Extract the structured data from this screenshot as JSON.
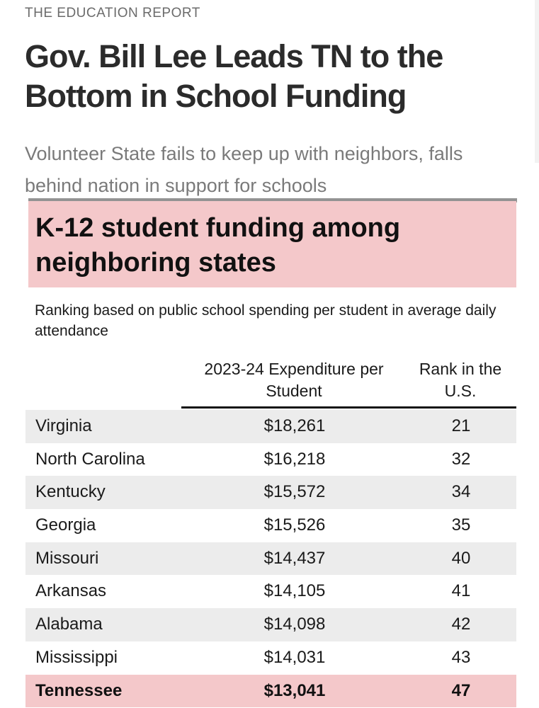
{
  "article": {
    "kicker": "THE EDUCATION REPORT",
    "headline": "Gov. Bill Lee Leads TN to the Bottom in School Funding",
    "subhead": "Volunteer State fails to keep up with neighbors, falls behind nation in support for schools"
  },
  "colors": {
    "highlight": "#f4c8ca",
    "row_shade": "#ececec"
  },
  "chart_data": {
    "type": "table",
    "title": "K-12 student funding among neighboring states",
    "subtitle": "Ranking based on public school spending per student in average daily attendance",
    "columns": [
      "",
      "2023-24 Expenditure per Student",
      "Rank in the U.S."
    ],
    "rows": [
      {
        "state": "Virginia",
        "expenditure": "$18,261",
        "rank": "21"
      },
      {
        "state": "North Carolina",
        "expenditure": "$16,218",
        "rank": "32"
      },
      {
        "state": "Kentucky",
        "expenditure": "$15,572",
        "rank": "34"
      },
      {
        "state": "Georgia",
        "expenditure": "$15,526",
        "rank": "35"
      },
      {
        "state": "Missouri",
        "expenditure": "$14,437",
        "rank": "40"
      },
      {
        "state": "Arkansas",
        "expenditure": "$14,105",
        "rank": "41"
      },
      {
        "state": "Alabama",
        "expenditure": "$14,098",
        "rank": "42"
      },
      {
        "state": "Mississippi",
        "expenditure": "$14,031",
        "rank": "43"
      },
      {
        "state": "Tennessee",
        "expenditure": "$13,041",
        "rank": "47"
      }
    ],
    "highlighted_row": "Tennessee"
  }
}
